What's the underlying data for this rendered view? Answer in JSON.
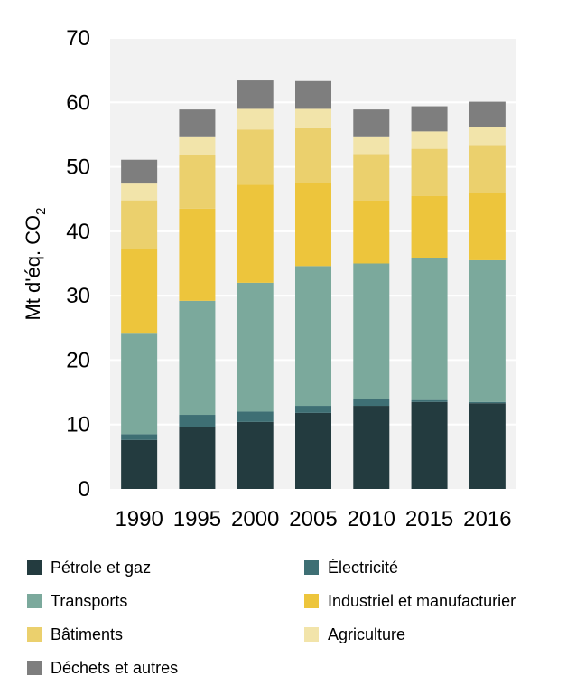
{
  "chart_data": {
    "type": "bar",
    "stacked": true,
    "categories": [
      "1990",
      "1995",
      "2000",
      "2005",
      "2010",
      "2015",
      "2016"
    ],
    "ylabel": "Mt d'éq. CO",
    "ylabel_subscript": "2",
    "ylim": [
      0,
      70
    ],
    "yticks": [
      "0",
      "10",
      "20",
      "30",
      "40",
      "50",
      "60",
      "70"
    ],
    "grid": true,
    "legend_position": "bottom",
    "series": [
      {
        "name": "Pétrole et gaz",
        "color": "#233b3f",
        "values": [
          7.6,
          9.6,
          10.4,
          11.8,
          12.9,
          13.5,
          13.3
        ]
      },
      {
        "name": "Électricité",
        "color": "#3e6f74",
        "values": [
          0.9,
          1.9,
          1.6,
          1.1,
          1.0,
          0.3,
          0.2
        ]
      },
      {
        "name": "Transports",
        "color": "#7ba99c",
        "values": [
          15.6,
          17.7,
          20.0,
          21.7,
          21.1,
          22.1,
          22.0
        ]
      },
      {
        "name": "Industriel et manufacturier",
        "color": "#edc53c",
        "values": [
          13.1,
          14.3,
          15.2,
          12.9,
          9.8,
          9.6,
          10.4
        ]
      },
      {
        "name": "Bâtiments",
        "color": "#ebd06d",
        "values": [
          7.6,
          8.3,
          8.6,
          8.5,
          7.2,
          7.3,
          7.5
        ]
      },
      {
        "name": "Agriculture",
        "color": "#f2e4aa",
        "values": [
          2.6,
          2.8,
          3.2,
          3.0,
          2.6,
          2.7,
          2.8
        ]
      },
      {
        "name": "Déchets et autres",
        "color": "#7e7e7e",
        "values": [
          3.7,
          4.3,
          4.4,
          4.3,
          4.3,
          3.9,
          3.9
        ]
      }
    ]
  }
}
